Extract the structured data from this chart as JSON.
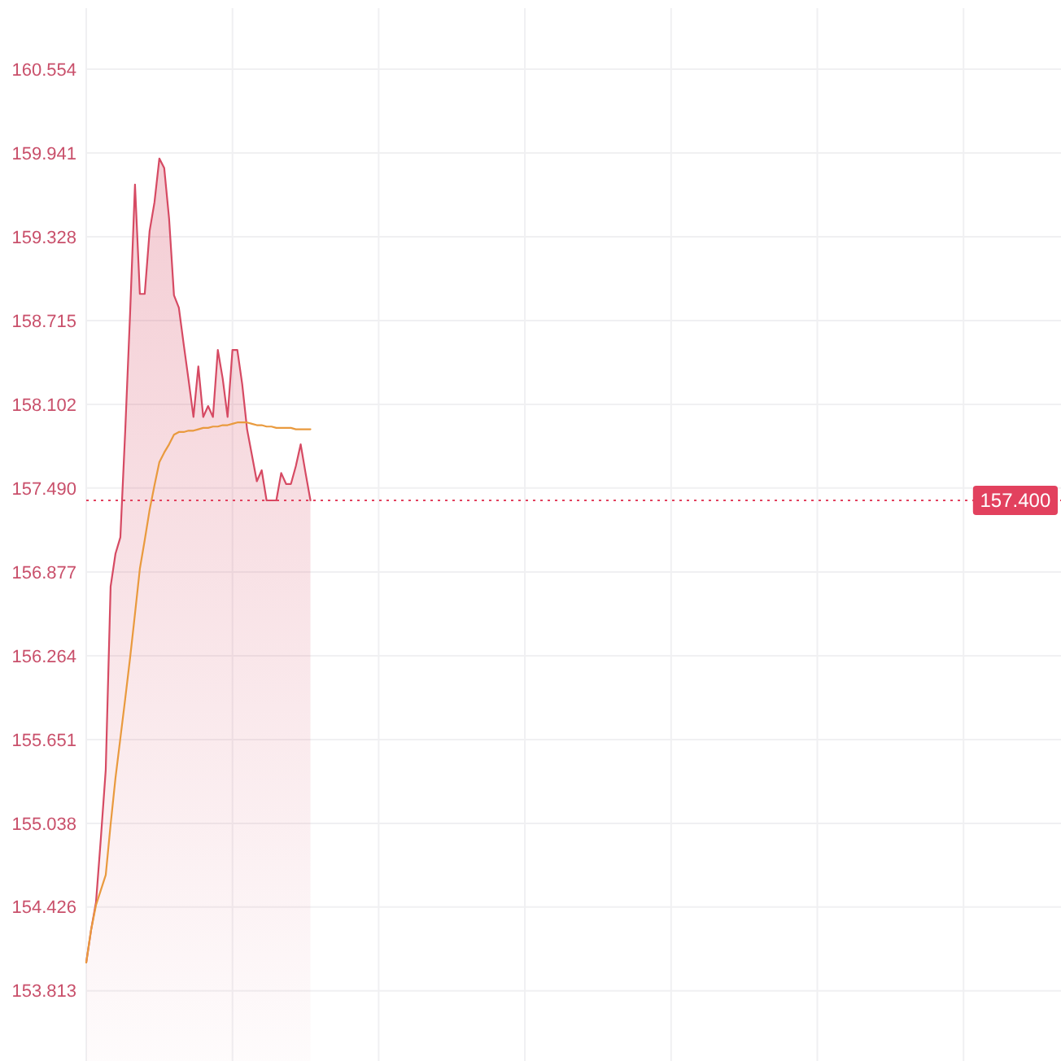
{
  "chart_data": {
    "type": "area",
    "categories": [
      null,
      null,
      null,
      null,
      null,
      null,
      null,
      null,
      null,
      null,
      null,
      null,
      null,
      null,
      null,
      null,
      null,
      null,
      null,
      null,
      null,
      null,
      null,
      null,
      null,
      null,
      null,
      null,
      null,
      null,
      null,
      null,
      null,
      null,
      null,
      null,
      null,
      null,
      null,
      null,
      null,
      null,
      null,
      null,
      null,
      null,
      null,
      null,
      null,
      null,
      null,
      null,
      null,
      null,
      null,
      null,
      null,
      null,
      null,
      null,
      null,
      null,
      null,
      null,
      null,
      null,
      null,
      null,
      null,
      null,
      null,
      null,
      null,
      null,
      null,
      null,
      null,
      null,
      null,
      null,
      null,
      null,
      null,
      null,
      null,
      null,
      null,
      null,
      null,
      null,
      null,
      null,
      null,
      null,
      null,
      null,
      null,
      null,
      null,
      null,
      null,
      null,
      null,
      null,
      null,
      null,
      null,
      null,
      null,
      null,
      null,
      null,
      null,
      null,
      null,
      null,
      null,
      null,
      null,
      null,
      null,
      null,
      null,
      null,
      null,
      null,
      null,
      null,
      null,
      null,
      null,
      null,
      null,
      null,
      null,
      null,
      null,
      null,
      null,
      null,
      null,
      null,
      null,
      null,
      null,
      null,
      null,
      null,
      null,
      null,
      null,
      null,
      null,
      null,
      null,
      null,
      null,
      null,
      null,
      null,
      null,
      null,
      null,
      null,
      null,
      null,
      null,
      null,
      null,
      null,
      null,
      null,
      null,
      null,
      null,
      null,
      null,
      null,
      null,
      null,
      null,
      null,
      null,
      null,
      null,
      null,
      null,
      null,
      null,
      null,
      null,
      null,
      null,
      null,
      null,
      null,
      null,
      null,
      null,
      null,
      null
    ],
    "series": [
      {
        "color": "#d64a63",
        "values": [
          154.02,
          154.26,
          154.46,
          154.93,
          155.43,
          156.77,
          157.01,
          157.13,
          157.91,
          158.77,
          159.71,
          158.91,
          158.91,
          159.37,
          159.58,
          159.9,
          159.83,
          159.46,
          158.9,
          158.81,
          158.54,
          158.28,
          158.01,
          158.38,
          158.01,
          158.09,
          158.01,
          158.5,
          158.29,
          158.01,
          158.5,
          158.5,
          158.25,
          157.92,
          157.73,
          157.54,
          157.62,
          157.4,
          157.4,
          157.4,
          157.6,
          157.52,
          157.52,
          157.65,
          157.81,
          157.6,
          157.4,
          null,
          null,
          null,
          null,
          null,
          null,
          null,
          null,
          null,
          null,
          null,
          null,
          null,
          null,
          null,
          null,
          null,
          null,
          null,
          null,
          null,
          null,
          null,
          null,
          null,
          null,
          null,
          null,
          null,
          null,
          null,
          null,
          null,
          null,
          null,
          null,
          null,
          null,
          null,
          null,
          null,
          null,
          null,
          null,
          null,
          null,
          null,
          null,
          null,
          null,
          null,
          null,
          null,
          null,
          null,
          null,
          null,
          null,
          null,
          null,
          null,
          null,
          null,
          null,
          null,
          null,
          null,
          null,
          null,
          null,
          null,
          null,
          null,
          null,
          null,
          null,
          null,
          null,
          null,
          null,
          null,
          null,
          null,
          null,
          null,
          null,
          null,
          null,
          null,
          null,
          null,
          null,
          null,
          null,
          null,
          null,
          null,
          null,
          null,
          null,
          null,
          null,
          null,
          null,
          null,
          null,
          null,
          null,
          null,
          null,
          null,
          null,
          null,
          null,
          null,
          null,
          null,
          null,
          null,
          null,
          null,
          null,
          null,
          null,
          null,
          null,
          null,
          null,
          null,
          null,
          null,
          null,
          null,
          null,
          null,
          null,
          null,
          null,
          null,
          null,
          null,
          null,
          null,
          null,
          null,
          null,
          null,
          null,
          null,
          null,
          null,
          null,
          null,
          null
        ]
      },
      {
        "type": "line",
        "color": "#e99a3e",
        "values": [
          154.02,
          154.26,
          154.44,
          154.55,
          154.66,
          155.03,
          155.37,
          155.66,
          155.95,
          156.25,
          156.57,
          156.9,
          157.11,
          157.33,
          157.51,
          157.68,
          157.75,
          157.81,
          157.88,
          157.9,
          157.9,
          157.91,
          157.91,
          157.92,
          157.93,
          157.93,
          157.94,
          157.94,
          157.95,
          157.95,
          157.96,
          157.97,
          157.97,
          157.97,
          157.96,
          157.95,
          157.95,
          157.94,
          157.94,
          157.93,
          157.93,
          157.93,
          157.93,
          157.92,
          157.92,
          157.92,
          157.92,
          null,
          null,
          null,
          null,
          null,
          null,
          null,
          null,
          null,
          null,
          null,
          null,
          null,
          null,
          null,
          null,
          null,
          null,
          null,
          null,
          null,
          null,
          null,
          null,
          null,
          null,
          null,
          null,
          null,
          null,
          null,
          null,
          null,
          null,
          null,
          null,
          null,
          null,
          null,
          null,
          null,
          null,
          null,
          null,
          null,
          null,
          null,
          null,
          null,
          null,
          null,
          null,
          null,
          null,
          null,
          null,
          null,
          null,
          null,
          null,
          null,
          null,
          null,
          null,
          null,
          null,
          null,
          null,
          null,
          null,
          null,
          null,
          null,
          null,
          null,
          null,
          null,
          null,
          null,
          null,
          null,
          null,
          null,
          null,
          null,
          null,
          null,
          null,
          null,
          null,
          null,
          null,
          null,
          null,
          null,
          null,
          null,
          null,
          null,
          null,
          null,
          null,
          null,
          null,
          null,
          null,
          null,
          null,
          null,
          null,
          null,
          null,
          null,
          null,
          null,
          null,
          null,
          null,
          null,
          null,
          null,
          null,
          null,
          null,
          null,
          null,
          null,
          null,
          null,
          null,
          null,
          null,
          null,
          null,
          null,
          null,
          null,
          null,
          null,
          null,
          null,
          null,
          null,
          null,
          null,
          null,
          null,
          null,
          null,
          null,
          null,
          null,
          null,
          null
        ]
      }
    ],
    "ylim": [
      153.3,
      161.0
    ],
    "yticks": [
      153.813,
      154.426,
      155.038,
      155.651,
      156.264,
      156.877,
      {
        "value": 157.49,
        "label": "157.490"
      },
      158.102,
      158.715,
      159.328,
      159.941,
      160.554
    ],
    "grid": true,
    "ref_lines": [
      {
        "axis": "y",
        "value": 157.4,
        "label": "157.400",
        "color": "#e2415e",
        "line_style": "dotted"
      }
    ]
  }
}
